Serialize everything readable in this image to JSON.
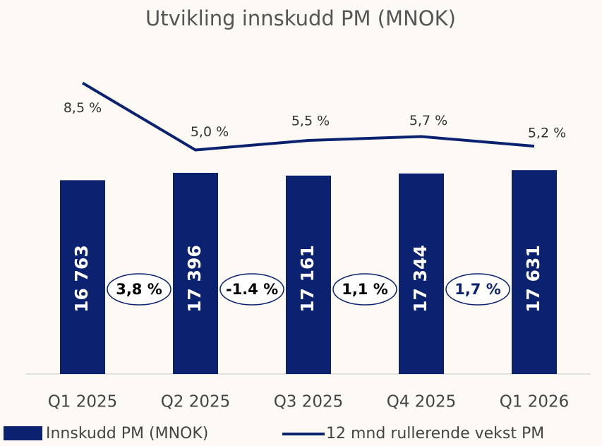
{
  "chart_data": {
    "type": "bar_line",
    "title": "Utvikling innskudd PM (MNOK)",
    "categories": [
      "Q1 2025",
      "Q2 2025",
      "Q3 2025",
      "Q4 2025",
      "Q1 2026"
    ],
    "series": [
      {
        "name": "Innskudd PM (MNOK)",
        "type": "bar",
        "color": "#0b2270",
        "values": [
          16763,
          17396,
          17161,
          17344,
          17631
        ],
        "value_labels": [
          "16 763",
          "17 396",
          "17 161",
          "17 344",
          "17 631"
        ]
      },
      {
        "name": "12 mnd rullerende vekst PM",
        "type": "line",
        "axis": "y2",
        "color": "#0b2270",
        "values": [
          8.5,
          5.0,
          5.5,
          5.7,
          5.2
        ],
        "value_labels": [
          "8,5 %",
          "5,0 %",
          "5,5 %",
          "5,7 %",
          "5,2 %"
        ]
      }
    ],
    "annotations": [
      {
        "value": 3.8,
        "label": "3,8 %"
      },
      {
        "value": -1.4,
        "label": "-1.4 %"
      },
      {
        "value": 1.1,
        "label": "1,1 %"
      },
      {
        "value": 1.7,
        "label": "1,7 %"
      }
    ],
    "ylim": [
      0,
      26000
    ],
    "y2lim": [
      -6.7,
      9
    ],
    "grid": false
  }
}
